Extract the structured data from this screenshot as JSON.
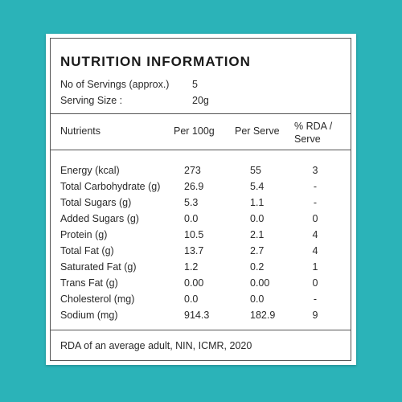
{
  "header": {
    "title": "NUTRITION INFORMATION"
  },
  "servings": [
    {
      "label": "No of Servings (approx.)",
      "value": "5"
    },
    {
      "label": "Serving Size :",
      "value": "20g"
    }
  ],
  "table": {
    "columns": [
      "Nutrients",
      "Per 100g",
      "Per Serve",
      "% RDA / Serve"
    ],
    "rows": [
      [
        "Energy (kcal)",
        "273",
        "55",
        "3"
      ],
      [
        "Total Carbohydrate (g)",
        "26.9",
        "5.4",
        "-"
      ],
      [
        "Total Sugars (g)",
        "5.3",
        "1.1",
        "-"
      ],
      [
        "Added Sugars (g)",
        "0.0",
        "0.0",
        "0"
      ],
      [
        "Protein (g)",
        "10.5",
        "2.1",
        "4"
      ],
      [
        "Total Fat (g)",
        "13.7",
        "2.7",
        "4"
      ],
      [
        "Saturated Fat (g)",
        "1.2",
        "0.2",
        "1"
      ],
      [
        "Trans Fat (g)",
        "0.00",
        "0.00",
        "0"
      ],
      [
        "Cholesterol (mg)",
        "0.0",
        "0.0",
        "-"
      ],
      [
        "Sodium (mg)",
        "914.3",
        "182.9",
        "9"
      ]
    ]
  },
  "footer": "RDA of an average adult, NIN, ICMR, 2020"
}
